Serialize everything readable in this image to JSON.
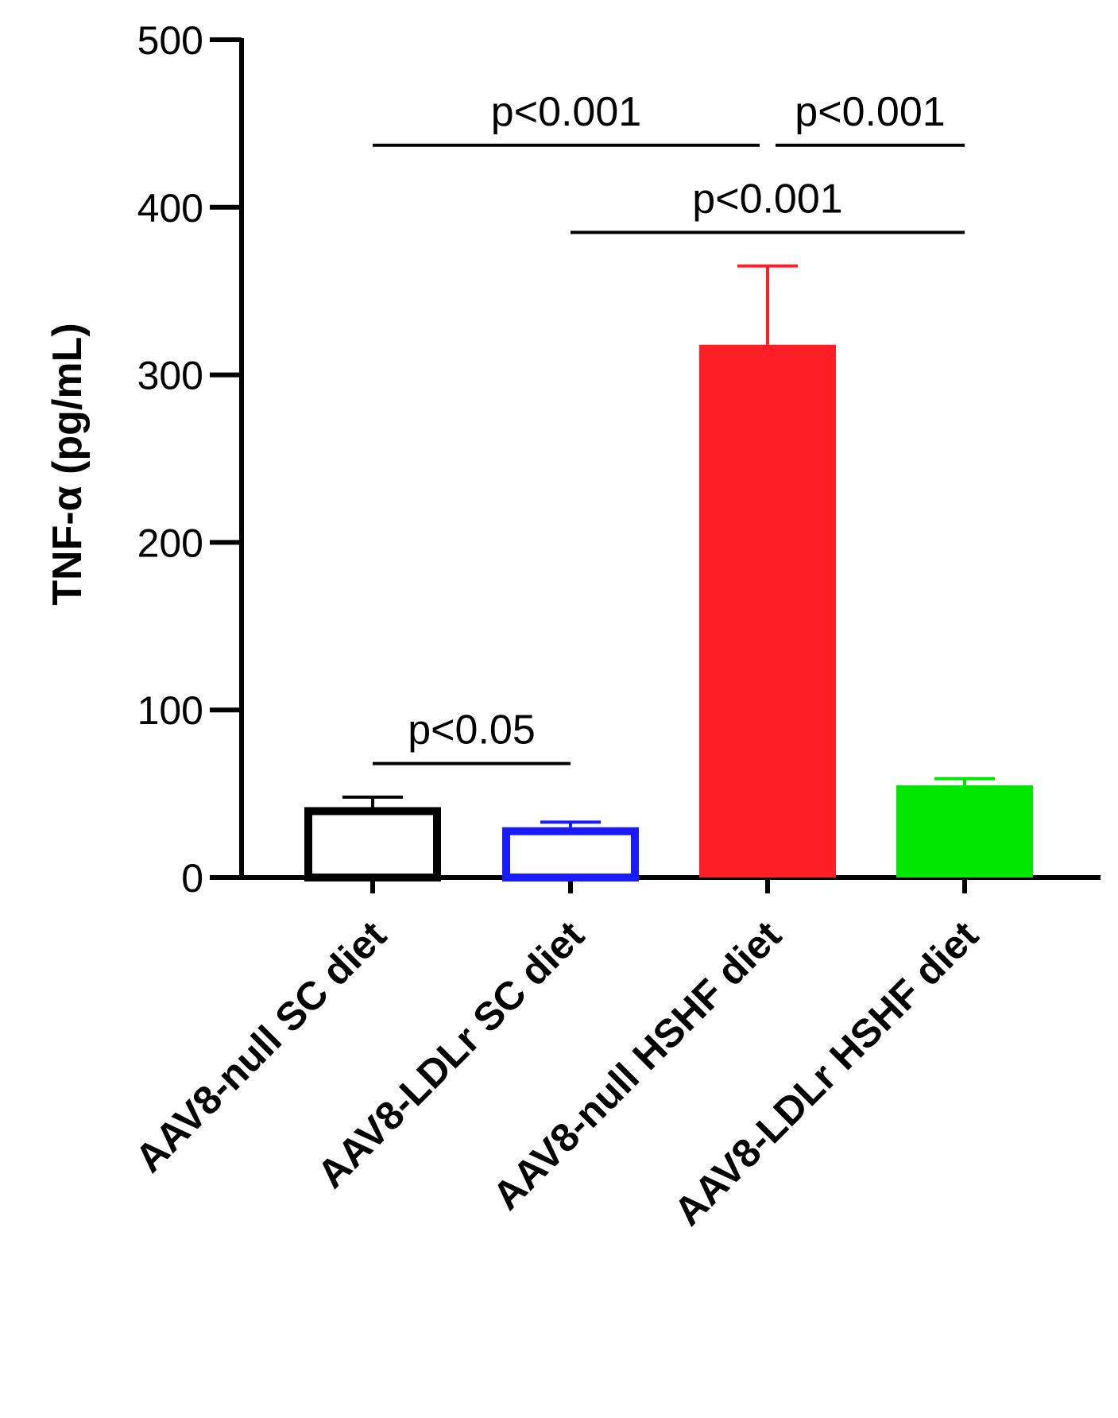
{
  "chart_data": {
    "type": "bar",
    "title": "",
    "xlabel": "",
    "ylabel": "TNF-α (pg/mL)",
    "ylim": [
      0,
      500
    ],
    "yticks": [
      0,
      100,
      200,
      300,
      400,
      500
    ],
    "grid": false,
    "categories": [
      "AAV8-null SC diet",
      "AAV8-LDLr SC diet",
      "AAV8-null HSHF diet",
      "AAV8-LDLr HSHF diet"
    ],
    "values": [
      42,
      30,
      318,
      55
    ],
    "errors": [
      6,
      3,
      47,
      4
    ],
    "styles": [
      {
        "fill": "#ffffff",
        "stroke": "#000000"
      },
      {
        "fill": "#ffffff",
        "stroke": "#1a1aff"
      },
      {
        "fill": "#ff1e26",
        "stroke": "#ff1e26"
      },
      {
        "fill": "#00e600",
        "stroke": "#00e600"
      }
    ],
    "significance": [
      {
        "from": 0,
        "to": 2,
        "label": "p<0.001",
        "y": 437
      },
      {
        "from": 2,
        "to": 3,
        "label": "p<0.001",
        "y": 437
      },
      {
        "from": 1,
        "to": 3,
        "label": "p<0.001",
        "y": 385
      },
      {
        "from": 0,
        "to": 1,
        "label": "p<0.05",
        "y": 68
      }
    ]
  }
}
